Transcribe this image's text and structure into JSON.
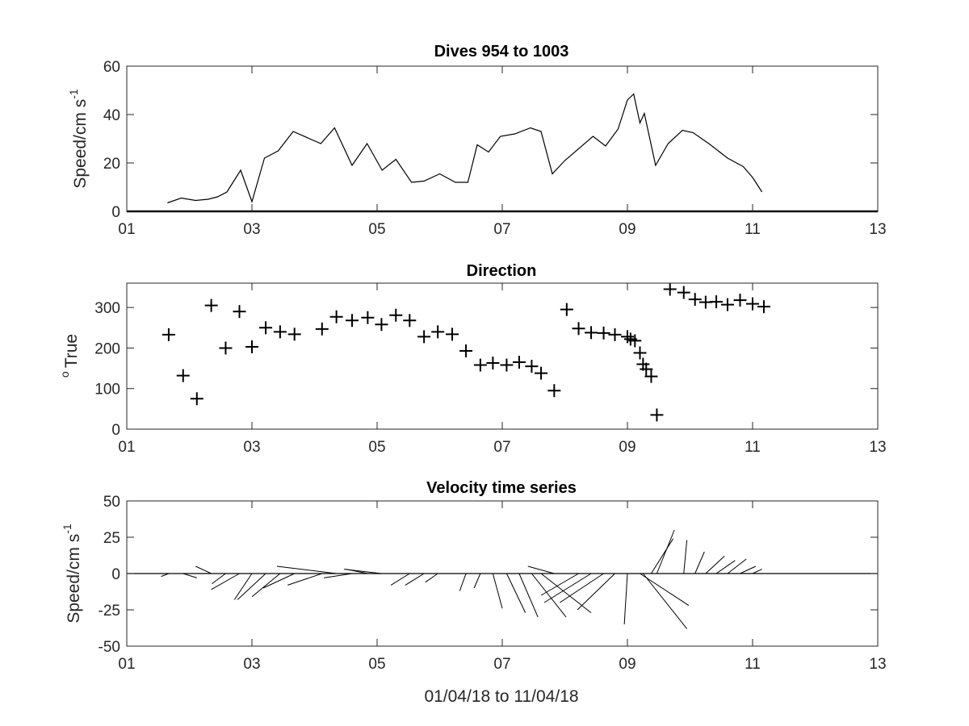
{
  "chart_data": [
    {
      "type": "line",
      "title": "Dives 954 to 1003",
      "ylabel": {
        "main": "Speed/cm s",
        "sup": "-1"
      },
      "xlabel": "",
      "xlim": [
        1,
        13
      ],
      "ylim": [
        0,
        60
      ],
      "xticks": [
        1,
        3,
        5,
        7,
        9,
        11,
        13
      ],
      "xtick_labels": [
        "01",
        "03",
        "05",
        "07",
        "09",
        "11",
        "13"
      ],
      "yticks": [
        0,
        20,
        40,
        60
      ],
      "ytick_labels": [
        "0",
        "20",
        "40",
        "60"
      ],
      "grid": false,
      "x": [
        1.65,
        1.87,
        2.1,
        2.3,
        2.45,
        2.6,
        2.82,
        3.0,
        3.2,
        3.42,
        3.66,
        4.1,
        4.32,
        4.6,
        4.84,
        5.08,
        5.3,
        5.55,
        5.75,
        6.0,
        6.25,
        6.45,
        6.6,
        6.78,
        6.97,
        7.2,
        7.45,
        7.62,
        7.8,
        8.0,
        8.45,
        8.65,
        8.85,
        9.0,
        9.1,
        9.2,
        9.27,
        9.45,
        9.65,
        9.88,
        10.05,
        10.3,
        10.6,
        10.85,
        11.0,
        11.15
      ],
      "values": [
        3.5,
        5.5,
        4.5,
        5,
        6,
        8,
        17,
        4,
        22,
        25,
        33,
        28,
        34.5,
        19,
        28,
        17,
        21.5,
        12,
        12.5,
        15.5,
        12,
        12,
        27.5,
        24.5,
        31,
        32,
        34.5,
        33,
        15.5,
        21,
        31,
        27,
        34,
        46,
        48.5,
        36.5,
        40.5,
        19,
        28,
        33.5,
        32.5,
        28,
        22,
        18.5,
        14,
        8
      ]
    },
    {
      "type": "scatter",
      "title": "Direction",
      "ylabel": {
        "main": "True",
        "sup": "o"
      },
      "xlabel": "",
      "xlim": [
        1,
        13
      ],
      "ylim": [
        0,
        360
      ],
      "xticks": [
        1,
        3,
        5,
        7,
        9,
        11,
        13
      ],
      "xtick_labels": [
        "01",
        "03",
        "05",
        "07",
        "09",
        "11",
        "13"
      ],
      "yticks": [
        0,
        100,
        200,
        300
      ],
      "ytick_labels": [
        "0",
        "100",
        "200",
        "300"
      ],
      "grid": false,
      "marker": "+",
      "x": [
        1.67,
        1.9,
        2.12,
        2.35,
        2.58,
        2.8,
        3.0,
        3.22,
        3.45,
        3.68,
        4.12,
        4.35,
        4.6,
        4.85,
        5.07,
        5.3,
        5.52,
        5.75,
        5.97,
        6.2,
        6.42,
        6.65,
        6.85,
        7.07,
        7.27,
        7.47,
        7.62,
        7.83,
        8.03,
        8.22,
        8.42,
        8.62,
        8.8,
        9.0,
        9.05,
        9.12,
        9.2,
        9.25,
        9.3,
        9.38,
        9.47,
        9.68,
        9.9,
        10.08,
        10.25,
        10.42,
        10.6,
        10.8,
        11.0,
        11.18
      ],
      "values": [
        233,
        132,
        75,
        305,
        200,
        290,
        203,
        250,
        240,
        234,
        247,
        277,
        268,
        275,
        258,
        281,
        268,
        228,
        240,
        234,
        193,
        158,
        163,
        158,
        165,
        155,
        138,
        95,
        295,
        248,
        238,
        237,
        233,
        228,
        222,
        218,
        188,
        160,
        148,
        130,
        35,
        345,
        337,
        320,
        313,
        314,
        307,
        318,
        309,
        302
      ]
    },
    {
      "type": "line",
      "subtype": "stick-plot",
      "title": "Velocity time series",
      "ylabel": {
        "main": "Speed/cm s",
        "sup": "-1"
      },
      "xlabel": "01/04/18 to 11/04/18",
      "xlim": [
        1,
        13
      ],
      "ylim": [
        -50,
        50
      ],
      "xticks": [
        1,
        3,
        5,
        7,
        9,
        11,
        13
      ],
      "xtick_labels": [
        "01",
        "03",
        "05",
        "07",
        "09",
        "11",
        "13"
      ],
      "yticks": [
        -50,
        -25,
        0,
        25,
        50
      ],
      "ytick_labels": [
        "-50",
        "-25",
        "0",
        "25",
        "50"
      ],
      "grid": false,
      "baseline": 0,
      "note_units": "each stick starts at (x, 0); u is east component in x-axis days, v is north component in cm/s",
      "sticks": [
        {
          "x": 1.67,
          "u": -0.12,
          "v": -2
        },
        {
          "x": 1.9,
          "u": 0.22,
          "v": -3
        },
        {
          "x": 2.12,
          "u": 0.0,
          "v": 0
        },
        {
          "x": 2.35,
          "u": -0.25,
          "v": 5
        },
        {
          "x": 2.58,
          "u": -0.22,
          "v": -7
        },
        {
          "x": 2.8,
          "u": -0.45,
          "v": -11
        },
        {
          "x": 3.0,
          "u": -0.28,
          "v": -18
        },
        {
          "x": 3.22,
          "u": -0.45,
          "v": -18
        },
        {
          "x": 3.45,
          "u": -0.45,
          "v": -16
        },
        {
          "x": 3.68,
          "u": -0.5,
          "v": -10
        },
        {
          "x": 4.12,
          "u": -0.55,
          "v": -8
        },
        {
          "x": 4.35,
          "u": -0.95,
          "v": 5
        },
        {
          "x": 4.6,
          "u": -0.45,
          "v": -3
        },
        {
          "x": 4.85,
          "u": -0.35,
          "v": 3
        },
        {
          "x": 5.07,
          "u": -0.6,
          "v": 3
        },
        {
          "x": 5.3,
          "u": 0.0,
          "v": 0
        },
        {
          "x": 5.52,
          "u": -0.3,
          "v": -8
        },
        {
          "x": 5.75,
          "u": -0.3,
          "v": -8
        },
        {
          "x": 5.97,
          "u": -0.2,
          "v": -6
        },
        {
          "x": 6.2,
          "u": 0.0,
          "v": 0
        },
        {
          "x": 6.42,
          "u": -0.1,
          "v": -12
        },
        {
          "x": 6.65,
          "u": -0.1,
          "v": -10
        },
        {
          "x": 6.85,
          "u": 0.15,
          "v": -24
        },
        {
          "x": 7.07,
          "u": 0.3,
          "v": -27
        },
        {
          "x": 7.27,
          "u": 0.3,
          "v": -30
        },
        {
          "x": 7.47,
          "u": 0.55,
          "v": -30
        },
        {
          "x": 7.62,
          "u": 0.8,
          "v": -27
        },
        {
          "x": 7.83,
          "u": -0.42,
          "v": 5
        },
        {
          "x": 8.03,
          "u": -0.6,
          "v": 0
        },
        {
          "x": 8.22,
          "u": -0.6,
          "v": -15
        },
        {
          "x": 8.42,
          "u": -0.75,
          "v": -20
        },
        {
          "x": 8.62,
          "u": -0.7,
          "v": -20
        },
        {
          "x": 8.8,
          "u": -0.6,
          "v": -25
        },
        {
          "x": 9.0,
          "u": -0.05,
          "v": -35
        },
        {
          "x": 9.05,
          "u": -0.05,
          "v": 0
        },
        {
          "x": 9.12,
          "u": -0.12,
          "v": 0
        },
        {
          "x": 9.2,
          "u": 0.78,
          "v": -22
        },
        {
          "x": 9.25,
          "u": 0.7,
          "v": -38
        },
        {
          "x": 9.3,
          "u": 0.0,
          "v": 0
        },
        {
          "x": 9.38,
          "u": 0.35,
          "v": 24
        },
        {
          "x": 9.47,
          "u": 0.28,
          "v": 30
        },
        {
          "x": 9.68,
          "u": 0.0,
          "v": 0
        },
        {
          "x": 9.9,
          "u": 0.05,
          "v": 23
        },
        {
          "x": 10.08,
          "u": 0.15,
          "v": 15
        },
        {
          "x": 10.25,
          "u": 0.3,
          "v": 12
        },
        {
          "x": 10.42,
          "u": 0.3,
          "v": 9
        },
        {
          "x": 10.6,
          "u": 0.3,
          "v": 10
        },
        {
          "x": 10.8,
          "u": 0.25,
          "v": 5
        },
        {
          "x": 11.0,
          "u": 0.15,
          "v": 3
        },
        {
          "x": 11.18,
          "u": 0.0,
          "v": 0
        }
      ]
    }
  ]
}
